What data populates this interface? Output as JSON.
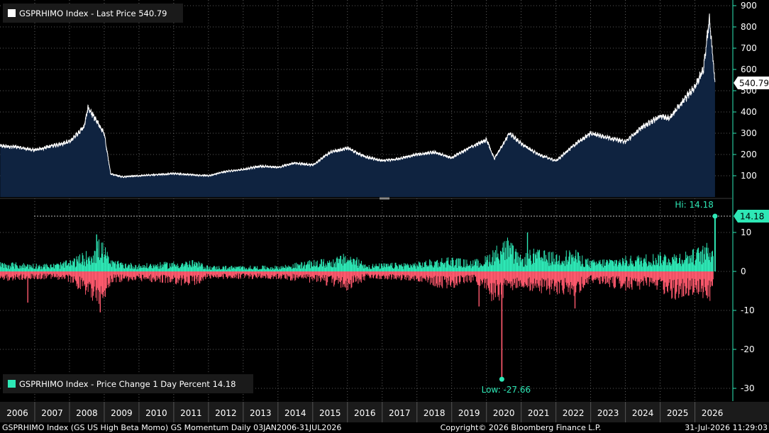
{
  "colors": {
    "background": "#000000",
    "price_fill": "#0f2340",
    "price_line": "#ffffff",
    "positive": "#2ee8b6",
    "negative": "#ff5a6e",
    "grid": "#777777",
    "axis_line": "#2ee8b6"
  },
  "legend_top": {
    "text": "GSPRHIMO Index - Last Price 540.79",
    "swatch": "#ffffff"
  },
  "legend_bottom": {
    "text": "GSPRHIMO Index - Price Change 1 Day Percent 14.18",
    "swatch": "#2ee8b6"
  },
  "footer": {
    "left": "GSPRHIMO Index (GS US High Beta Momo) GS Momentum Daily 03JAN2006-31JUL2026",
    "center": "Copyright© 2026 Bloomberg Finance L.P.",
    "right": "31-Jul-2026 11:29:03"
  },
  "chart_data": [
    {
      "type": "area",
      "series": [
        {
          "name": "GSPRHIMO Index - Last Price",
          "x": [
            "2006-01-03",
            "2006-06-30",
            "2007-01-02",
            "2007-06-29",
            "2008-01-02",
            "2008-06-02",
            "2008-07-15",
            "2008-12-31",
            "2009-03-09",
            "2009-06-30",
            "2010-01-04",
            "2010-06-30",
            "2011-01-03",
            "2011-06-30",
            "2012-01-03",
            "2012-06-29",
            "2013-01-02",
            "2013-06-28",
            "2014-01-02",
            "2014-06-30",
            "2015-01-02",
            "2015-06-30",
            "2016-01-04",
            "2016-06-30",
            "2017-01-03",
            "2017-06-30",
            "2018-01-02",
            "2018-06-29",
            "2019-01-02",
            "2019-06-28",
            "2020-01-02",
            "2020-03-23",
            "2020-08-31",
            "2021-01-04",
            "2021-06-30",
            "2022-01-03",
            "2022-06-30",
            "2022-12-30",
            "2023-06-30",
            "2024-01-02",
            "2024-06-28",
            "2025-01-02",
            "2025-04-08",
            "2025-06-30",
            "2026-01-02",
            "2026-03-31",
            "2026-06-01",
            "2026-07-31"
          ],
          "values": [
            240,
            235,
            220,
            240,
            260,
            330,
            420,
            300,
            110,
            95,
            100,
            105,
            110,
            105,
            100,
            120,
            130,
            145,
            140,
            160,
            150,
            210,
            230,
            190,
            170,
            180,
            200,
            210,
            185,
            230,
            270,
            180,
            300,
            250,
            200,
            170,
            240,
            300,
            280,
            260,
            330,
            380,
            370,
            420,
            520,
            600,
            840,
            540.79
          ],
          "last_price": 540.79
        }
      ],
      "ylim": [
        0,
        900
      ],
      "yticks": [
        100,
        200,
        300,
        400,
        500,
        600,
        700,
        800,
        900
      ],
      "last_value_label": "540.79",
      "grid": true
    },
    {
      "type": "bar",
      "series": [
        {
          "name": "GSPRHIMO Index - Price Change 1 Day Percent",
          "x_range": [
            "2006-01-03",
            "2026-07-31"
          ],
          "positive_envelope": [
            [
              2006.0,
              2.5
            ],
            [
              2007.5,
              2
            ],
            [
              2008.0,
              3
            ],
            [
              2008.6,
              6
            ],
            [
              2008.9,
              9
            ],
            [
              2009.2,
              3
            ],
            [
              2010.0,
              2
            ],
            [
              2011.6,
              3
            ],
            [
              2012.0,
              1.5
            ],
            [
              2014.0,
              1.5
            ],
            [
              2015.0,
              3
            ],
            [
              2015.6,
              3.5
            ],
            [
              2016.0,
              5
            ],
            [
              2016.6,
              2
            ],
            [
              2018.0,
              2.5
            ],
            [
              2018.9,
              4
            ],
            [
              2019.5,
              3
            ],
            [
              2019.9,
              3.5
            ],
            [
              2020.3,
              7
            ],
            [
              2020.6,
              9
            ],
            [
              2021.0,
              4
            ],
            [
              2021.3,
              6
            ],
            [
              2022.0,
              5
            ],
            [
              2022.5,
              6
            ],
            [
              2023.0,
              3
            ],
            [
              2024.0,
              4
            ],
            [
              2025.0,
              5
            ],
            [
              2025.4,
              5
            ],
            [
              2026.0,
              6
            ],
            [
              2026.5,
              8
            ],
            [
              2026.58,
              14.18
            ]
          ],
          "negative_envelope": [
            [
              2006.0,
              -2.5
            ],
            [
              2007.5,
              -2
            ],
            [
              2008.0,
              -3
            ],
            [
              2008.6,
              -7
            ],
            [
              2008.9,
              -10
            ],
            [
              2009.2,
              -3
            ],
            [
              2010.0,
              -2.5
            ],
            [
              2011.6,
              -4
            ],
            [
              2012.0,
              -2
            ],
            [
              2014.0,
              -2
            ],
            [
              2015.0,
              -3
            ],
            [
              2015.6,
              -4
            ],
            [
              2016.0,
              -5
            ],
            [
              2016.6,
              -2
            ],
            [
              2018.0,
              -2.5
            ],
            [
              2018.9,
              -5
            ],
            [
              2019.5,
              -3
            ],
            [
              2019.9,
              -4
            ],
            [
              2020.2,
              -9
            ],
            [
              2020.5,
              -7
            ],
            [
              2021.0,
              -4
            ],
            [
              2021.3,
              -6
            ],
            [
              2022.0,
              -6
            ],
            [
              2022.5,
              -7
            ],
            [
              2023.0,
              -3
            ],
            [
              2024.0,
              -5
            ],
            [
              2025.0,
              -5
            ],
            [
              2025.3,
              -8
            ],
            [
              2026.0,
              -6
            ],
            [
              2026.5,
              -9
            ],
            [
              2026.58,
              -2
            ]
          ],
          "spikes": [
            {
              "date": "2020-06-11",
              "value": -27.66
            },
            {
              "date": "2006-10-20",
              "value": -8
            },
            {
              "date": "2008-11-20",
              "value": -10.5
            },
            {
              "date": "2008-10-13",
              "value": 9.5
            },
            {
              "date": "2019-10-15",
              "value": -9
            },
            {
              "date": "2021-03-08",
              "value": 10
            },
            {
              "date": "2022-07-20",
              "value": -9.5
            }
          ],
          "last_value": 14.18
        }
      ],
      "ylim": [
        -31,
        14.18
      ],
      "yticks": [
        -30,
        -20,
        -10,
        0,
        10
      ],
      "hi": {
        "label": "Hi: 14.18",
        "value": 14.18,
        "date": "2026-07-31"
      },
      "low": {
        "label": "Low: -27.66",
        "value": -27.66,
        "date": "2020-06-11"
      },
      "last_value_label": "14.18",
      "grid": true
    }
  ],
  "x_axis": {
    "ticks": [
      "2006",
      "2007",
      "2008",
      "2009",
      "2010",
      "2011",
      "2012",
      "2013",
      "2014",
      "2015",
      "2016",
      "2017",
      "2018",
      "2019",
      "2020",
      "2021",
      "2022",
      "2023",
      "2024",
      "2025",
      "2026"
    ]
  }
}
